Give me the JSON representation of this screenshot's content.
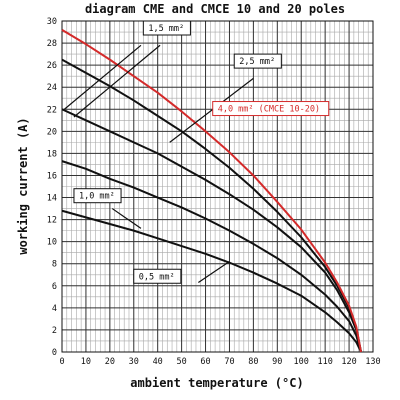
{
  "chart_data": {
    "type": "line",
    "title": "diagram CME and CMCE 10 and 20 poles",
    "xlabel": "ambient temperature (°C)",
    "ylabel": "working current (A)",
    "xlim": [
      0,
      130
    ],
    "ylim": [
      0,
      30
    ],
    "x_ticks": [
      "0",
      "10",
      "20",
      "30",
      "40",
      "50",
      "60",
      "70",
      "80",
      "90",
      "100",
      "110",
      "120",
      "130"
    ],
    "y_ticks": [
      "0",
      "2",
      "4",
      "6",
      "8",
      "10",
      "12",
      "14",
      "16",
      "18",
      "20",
      "22",
      "24",
      "26",
      "28",
      "30"
    ],
    "grid": true,
    "x_minor_step": 2,
    "y_minor_step": 1,
    "series": [
      {
        "name": "0,5 mm²",
        "color": "#111111",
        "x": [
          0,
          10,
          20,
          30,
          40,
          50,
          60,
          70,
          80,
          90,
          100,
          110,
          115,
          120,
          123,
          125
        ],
        "y": [
          12.8,
          12.2,
          11.6,
          11.0,
          10.3,
          9.6,
          8.9,
          8.1,
          7.2,
          6.2,
          5.1,
          3.6,
          2.7,
          1.7,
          0.9,
          0
        ]
      },
      {
        "name": "1,0 mm²",
        "color": "#111111",
        "x": [
          0,
          10,
          20,
          30,
          40,
          50,
          60,
          70,
          80,
          90,
          100,
          110,
          115,
          120,
          123,
          125
        ],
        "y": [
          17.3,
          16.6,
          15.7,
          14.9,
          14.0,
          13.1,
          12.1,
          11.0,
          9.8,
          8.5,
          7.0,
          5.2,
          4.1,
          2.8,
          1.5,
          0
        ]
      },
      {
        "name": "1,5 mm²",
        "color": "#111111",
        "x": [
          0,
          10,
          20,
          30,
          40,
          50,
          60,
          70,
          80,
          90,
          100,
          110,
          115,
          120,
          123,
          125
        ],
        "y": [
          22.0,
          21.0,
          20.0,
          19.0,
          18.0,
          16.8,
          15.6,
          14.3,
          12.9,
          11.3,
          9.5,
          7.2,
          5.6,
          3.6,
          2.0,
          0
        ]
      },
      {
        "name": "2,5 mm²",
        "color": "#111111",
        "x": [
          0,
          10,
          20,
          30,
          40,
          50,
          60,
          70,
          80,
          90,
          100,
          110,
          115,
          120,
          123,
          125
        ],
        "y": [
          26.5,
          25.3,
          24.1,
          22.8,
          21.4,
          20.0,
          18.4,
          16.7,
          14.8,
          12.7,
          10.4,
          7.7,
          6.0,
          4.0,
          2.2,
          0
        ]
      },
      {
        "name": "4,0 mm² (CMCE 10-20)",
        "color": "#d42a2a",
        "x": [
          0,
          10,
          20,
          30,
          40,
          50,
          60,
          70,
          80,
          90,
          100,
          110,
          115,
          120,
          123,
          125
        ],
        "y": [
          29.2,
          27.9,
          26.5,
          25.0,
          23.5,
          21.8,
          20.0,
          18.1,
          16.0,
          13.6,
          11.1,
          8.1,
          6.3,
          4.2,
          2.3,
          0
        ]
      }
    ],
    "annotations": [
      {
        "label": "1,5 mm²",
        "box_x": 34,
        "box_y": 30,
        "color": "#111111",
        "leaders": [
          [
            33,
            27.8,
            1,
            22
          ],
          [
            41,
            27.8,
            5,
            21.3
          ]
        ]
      },
      {
        "label": "2,5 mm²",
        "box_x": 72,
        "box_y": 27,
        "color": "#111111",
        "leaders": [
          [
            80,
            24.8,
            45,
            19.0
          ]
        ]
      },
      {
        "label": "4,0 mm² (CMCE 10-20)",
        "box_x": 63,
        "box_y": 22.7,
        "color": "#d42a2a",
        "leaders": []
      },
      {
        "label": "1,0 mm²",
        "box_x": 5,
        "box_y": 14.8,
        "color": "#111111",
        "leaders": [
          [
            21,
            13.0,
            33,
            11.2
          ]
        ]
      },
      {
        "label": "0,5 mm²",
        "box_x": 30,
        "box_y": 7.5,
        "color": "#111111",
        "leaders": [
          [
            57,
            6.3,
            70,
            8.2
          ]
        ]
      }
    ]
  }
}
